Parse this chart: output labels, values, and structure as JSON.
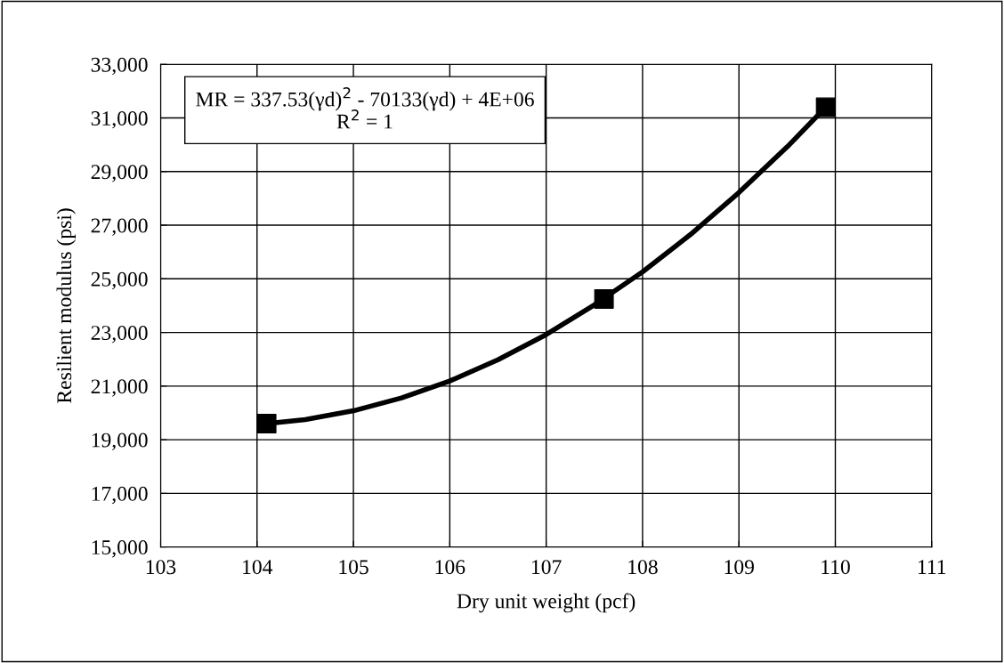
{
  "chart_data": {
    "type": "scatter",
    "xlabel": "Dry unit weight (pcf)",
    "ylabel": "Resilient modulus (psi)",
    "annotations": [
      "MR = 337.53(γd)$^{2}$ - 70133(γd) + 4E+06\nR$^{2}$ = 1"
    ],
    "series": [
      {
        "type": "line",
        "color": "#000000",
        "marker": "none",
        "line_style": "solid",
        "x": [
          104.1,
          104.5,
          105,
          105.5,
          106,
          106.5,
          107,
          107.5,
          108,
          108.5,
          109,
          109.5,
          109.9
        ],
        "values": [
          19600,
          19750,
          20080,
          20560,
          21190,
          21980,
          22920,
          24030,
          25260,
          26660,
          28220,
          29920,
          31400
        ]
      },
      {
        "color": "#000000",
        "marker": "square",
        "x": [
          104.1,
          107.6,
          109.9
        ],
        "values": [
          19600,
          24250,
          31400
        ]
      }
    ],
    "xlim": [
      103,
      111
    ],
    "xticks": [
      103,
      104,
      105,
      106,
      107,
      108,
      109,
      110,
      111
    ],
    "ylim": [
      15000,
      33000
    ],
    "yticks": [
      {
        "value": 15000,
        "label": "15,000"
      },
      {
        "value": 17000,
        "label": "17,000"
      },
      {
        "value": 19000,
        "label": "19,000"
      },
      {
        "value": 21000,
        "label": "21,000"
      },
      {
        "value": 23000,
        "label": "23,000"
      },
      {
        "value": 25000,
        "label": "25,000"
      },
      {
        "value": 27000,
        "label": "27,000"
      },
      {
        "value": 29000,
        "label": "29,000"
      },
      {
        "value": 31000,
        "label": "31,000"
      },
      {
        "value": 33000,
        "label": "33,000"
      }
    ],
    "grid": true,
    "legend": false
  }
}
